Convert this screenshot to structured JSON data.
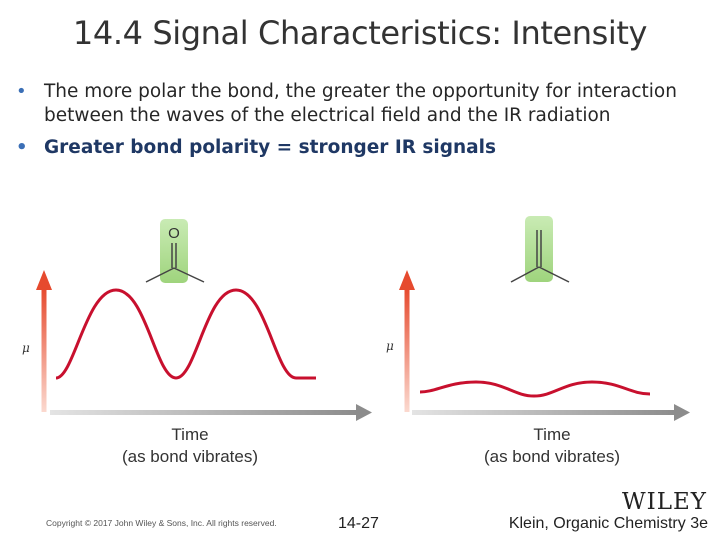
{
  "slide": {
    "title": "14.4 Signal Characteristics: Intensity",
    "bullets": [
      "The more polar the bond, the greater the opportunity for interaction between the waves of the electrical field and the IR radiation",
      "Greater bond polarity = stronger IR signals"
    ]
  },
  "diagrams": [
    {
      "molecule_atom": "O",
      "axis_label": "μ",
      "x_label_line1": "Time",
      "x_label_line2": "(as bond vibrates)",
      "wave": "large amplitude"
    },
    {
      "molecule_atom": "",
      "axis_label": "μ",
      "x_label_line1": "Time",
      "x_label_line2": "(as bond vibrates)",
      "wave": "small amplitude"
    }
  ],
  "colors": {
    "wave": "#c8102e",
    "arrow_red": "#e64a2e",
    "arrow_gray": "#9a9a9a",
    "molecule_highlight": "#a8d88c",
    "bullet": "#3b6fb6"
  },
  "footer": {
    "copyright": "Copyright © 2017 John Wiley & Sons, Inc. All rights reserved.",
    "page": "14-27",
    "book": "Klein, Organic Chemistry 3e",
    "logo": "WILEY"
  }
}
